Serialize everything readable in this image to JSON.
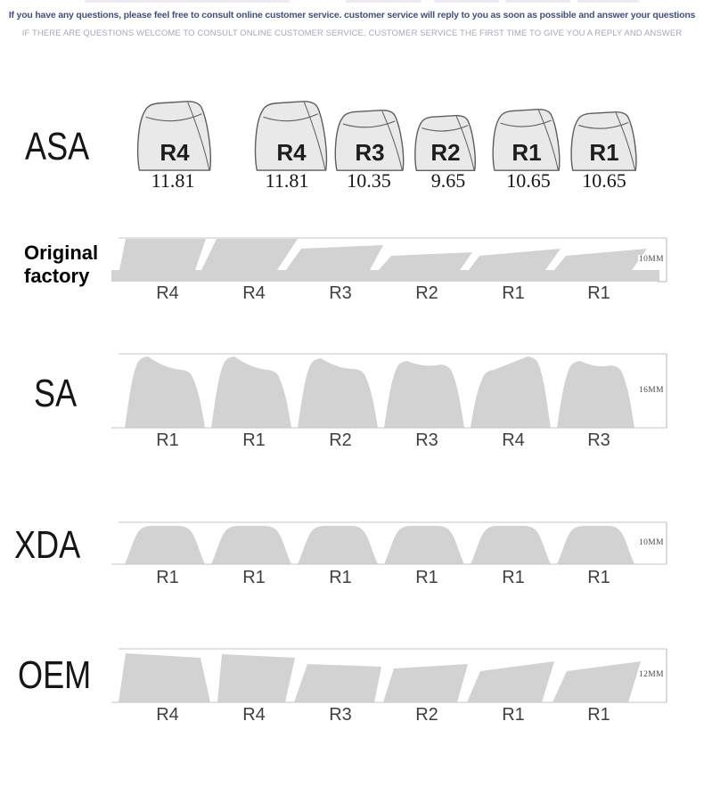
{
  "header": {
    "line1": "If you have any questions, please feel free to consult online customer service. customer service will reply to you as soon as possible and answer your questions",
    "line2": "IF THERE ARE QUESTIONS WELCOME TO CONSULT ONLINE CUSTOMER SERVICE, CUSTOMER SERVICE THE FIRST TIME TO GIVE YOU A REPLY AND ANSWER"
  },
  "colors": {
    "header_primary": "#44507e",
    "header_secondary": "#a6aaba",
    "silhouette": "#d2d2d2",
    "keycap_fill": "#e9e9e9",
    "keycap_outline": "#5e5e5e",
    "guide_line": "#c6c6c6",
    "bracket_line": "#b5b5b5"
  },
  "rows": {
    "asa": {
      "label": "ASA",
      "keys": [
        {
          "r": "R4",
          "value": "11.81"
        },
        {
          "r": "R4",
          "value": "11.81"
        },
        {
          "r": "R3",
          "value": "10.35"
        },
        {
          "r": "R2",
          "value": "9.65"
        },
        {
          "r": "R1",
          "value": "10.65"
        },
        {
          "r": "R1",
          "value": "10.65"
        }
      ]
    },
    "original": {
      "label": "Original factory",
      "height": "10MM",
      "keys": [
        "R4",
        "R4",
        "R3",
        "R2",
        "R1",
        "R1"
      ]
    },
    "sa": {
      "label": "SA",
      "height": "16MM",
      "keys": [
        "R1",
        "R1",
        "R2",
        "R3",
        "R4",
        "R3"
      ]
    },
    "xda": {
      "label": "XDA",
      "height": "10MM",
      "keys": [
        "R1",
        "R1",
        "R1",
        "R1",
        "R1",
        "R1"
      ]
    },
    "oem": {
      "label": "OEM",
      "height": "12MM",
      "keys": [
        "R4",
        "R4",
        "R3",
        "R2",
        "R1",
        "R1"
      ]
    }
  }
}
